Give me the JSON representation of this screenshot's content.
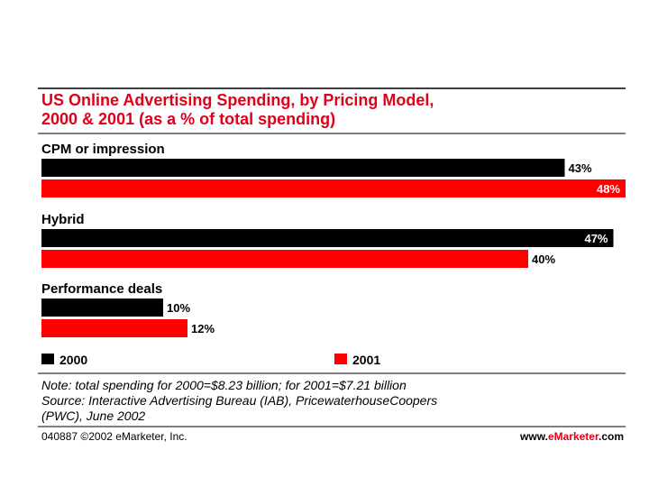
{
  "chart_data": {
    "type": "bar",
    "orientation": "horizontal",
    "title_lines": [
      "US Online Advertising Spending, by Pricing Model,",
      "2000 & 2001 (as a % of total spending)"
    ],
    "categories": [
      "CPM or impression",
      "Hybrid",
      "Performance deals"
    ],
    "series": [
      {
        "name": "2000",
        "color": "#000000",
        "values": [
          43,
          47,
          10
        ],
        "labels": [
          "43%",
          "47%",
          "10%"
        ]
      },
      {
        "name": "2001",
        "color": "#ff0000",
        "values": [
          48,
          40,
          12
        ],
        "labels": [
          "48%",
          "40%",
          "12%"
        ]
      }
    ],
    "xlim": [
      0,
      48
    ],
    "legend_position": "bottom"
  },
  "note_lines": [
    "Note: total spending for 2000=$8.23 billion; for 2001=$7.21 billion",
    "Source: Interactive Advertising Bureau (IAB), PricewaterhouseCoopers",
    "(PWC), June 2002"
  ],
  "footer": {
    "code": "040887 ©2002 eMarketer, Inc.",
    "site_prefix": "www.",
    "site_brand": "eMarketer",
    "site_suffix": ".com"
  }
}
